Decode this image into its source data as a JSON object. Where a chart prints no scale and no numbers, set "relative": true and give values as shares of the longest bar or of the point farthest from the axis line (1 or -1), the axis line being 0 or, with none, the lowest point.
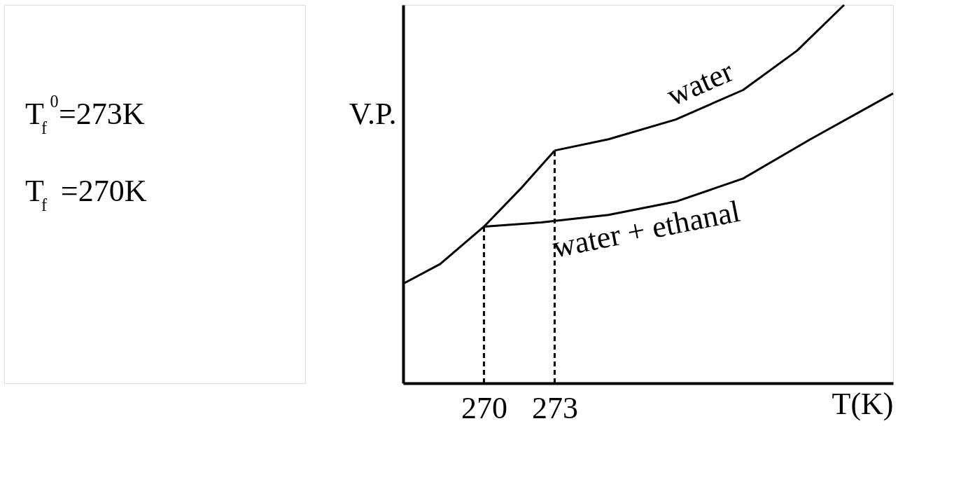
{
  "chart_data": {
    "type": "line",
    "relative": true,
    "xlabel": "T(K)",
    "ylabel": "V.P.",
    "xlim": [
      266.57,
      287.37
    ],
    "xticks": [
      270,
      273
    ],
    "line_style": "solid",
    "annotations": [
      "T$_{f}$$^{0}$=273K",
      "T$_{f}$ =270K"
    ],
    "series": [
      {
        "color": "#000000",
        "x": [
          266.57,
          268.14,
          270,
          271.57,
          273
        ],
        "values": [
          0.263,
          0.315,
          0.414,
          0.515,
          0.615
        ]
      },
      {
        "name": "water",
        "color": "#000000",
        "x": [
          273,
          275.29,
          278.14,
          281.0,
          283.29,
          285.29
        ],
        "values": [
          0.615,
          0.645,
          0.697,
          0.775,
          0.879,
          1.0
        ]
      },
      {
        "name": "water + ethanal",
        "color": "#000000",
        "x": [
          270,
          272.43,
          275.29,
          278.14,
          281.0,
          283.86,
          287.37
        ],
        "values": [
          0.414,
          0.425,
          0.445,
          0.48,
          0.541,
          0.645,
          0.766
        ]
      },
      {
        "color": "#000000",
        "line_style": "dashed",
        "x": [
          270,
          270
        ],
        "values": [
          0,
          0.414
        ]
      },
      {
        "color": "#000000",
        "line_style": "dashed",
        "x": [
          273,
          273
        ],
        "values": [
          0,
          0.615
        ]
      }
    ]
  }
}
